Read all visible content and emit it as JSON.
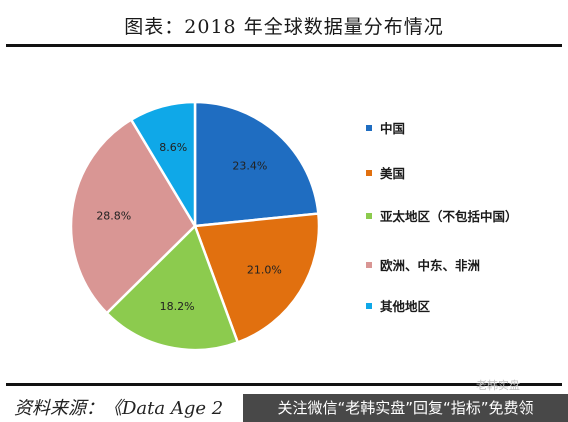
{
  "header": {
    "title": "图表：2018 年全球数据量分布情况"
  },
  "footer": {
    "source": "资料来源：《Data Age 2",
    "watermark": "关注微信“老韩实盘”回复“指标”免费领",
    "watermark_faint": "老韩实盘"
  },
  "chart_data": {
    "type": "pie",
    "categories": [
      "中国",
      "美国",
      "亚太地区（不包括中国）",
      "欧洲、中东、非洲",
      "其他地区"
    ],
    "values": [
      23.4,
      21.0,
      18.2,
      28.8,
      8.6
    ],
    "labels": [
      "23.4%",
      "21.0%",
      "18.2%",
      "28.8%",
      "8.6%"
    ],
    "colors": [
      "#1F6DC1",
      "#E1700F",
      "#8CCB4E",
      "#D99694",
      "#0FA8E8"
    ],
    "legend_items": [
      {
        "label": "中国",
        "color": "#1F6DC1"
      },
      {
        "label": "美国",
        "color": "#E1700F"
      },
      {
        "label": "亚太地区（不包括中国）",
        "color": "#8CCB4E"
      },
      {
        "label": "欧洲、中东、非洲",
        "color": "#D99694"
      },
      {
        "label": "其他地区",
        "color": "#0FA8E8"
      }
    ],
    "legend_position": "right",
    "start_angle": "12 o'clock",
    "direction": "clockwise"
  }
}
